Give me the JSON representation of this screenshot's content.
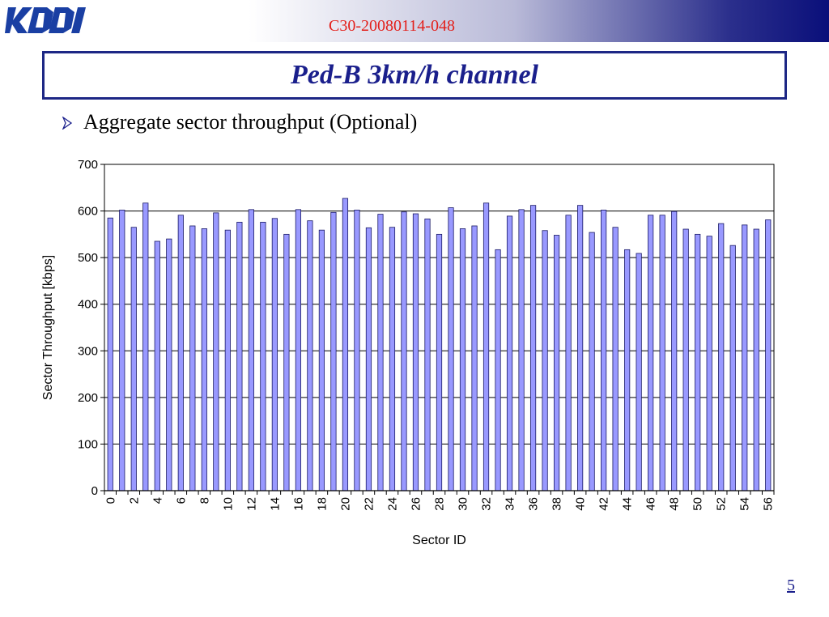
{
  "header": {
    "doc_id": "C30-20080114-048",
    "logo_name": "kddi-logo",
    "logo_text": "KDDI"
  },
  "slide": {
    "title": "Ped-B 3km/h channel",
    "bullet": "Aggregate sector throughput (Optional)",
    "page_number": "5"
  },
  "colors": {
    "title": "#1a1f8c",
    "doc_id": "#e3201b",
    "bar_fill": "#9999ff",
    "bar_stroke": "#1a1a66"
  },
  "chart_data": {
    "type": "bar",
    "title": "",
    "xlabel": "Sector ID",
    "ylabel": "Sector Throughput [kbps]",
    "ylim": [
      0,
      700
    ],
    "yticks": [
      0,
      100,
      200,
      300,
      400,
      500,
      600,
      700
    ],
    "grid": true,
    "legend": "none",
    "categories": [
      0,
      1,
      2,
      3,
      4,
      5,
      6,
      7,
      8,
      9,
      10,
      11,
      12,
      13,
      14,
      15,
      16,
      17,
      18,
      19,
      20,
      21,
      22,
      23,
      24,
      25,
      26,
      27,
      28,
      29,
      30,
      31,
      32,
      33,
      34,
      35,
      36,
      37,
      38,
      39,
      40,
      41,
      42,
      43,
      44,
      45,
      46,
      47,
      48,
      49,
      50,
      51,
      52,
      53,
      54,
      55,
      56
    ],
    "xtick_labels": [
      "0",
      "2",
      "4",
      "6",
      "8",
      "10",
      "12",
      "14",
      "16",
      "18",
      "20",
      "22",
      "24",
      "26",
      "28",
      "30",
      "32",
      "34",
      "36",
      "38",
      "40",
      "42",
      "44",
      "46",
      "48",
      "50",
      "52",
      "54",
      "56"
    ],
    "values": [
      585,
      602,
      565,
      617,
      535,
      540,
      591,
      568,
      562,
      596,
      559,
      576,
      603,
      576,
      584,
      550,
      603,
      579,
      559,
      597,
      627,
      602,
      564,
      593,
      565,
      598,
      594,
      583,
      550,
      607,
      562,
      568,
      617,
      517,
      589,
      603,
      612,
      558,
      548,
      591,
      612,
      554,
      602,
      565,
      517,
      509,
      591,
      591,
      599,
      561,
      550,
      546,
      573,
      526,
      570,
      561,
      581
    ]
  }
}
